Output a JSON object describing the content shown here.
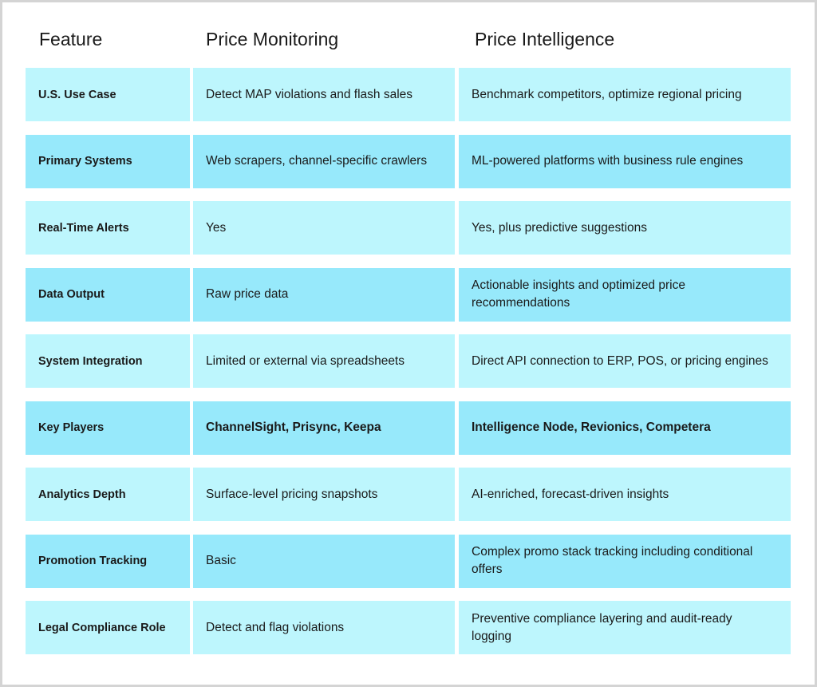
{
  "headers": [
    "Feature",
    "Price Monitoring",
    "Price Intelligence"
  ],
  "colors": {
    "row_light": "#bdf6fd",
    "row_dark": "#97e9fb",
    "frame": "#d4d4d4"
  },
  "rows": [
    {
      "feature": "U.S. Use Case",
      "monitoring": "Detect MAP violations and flash sales",
      "intelligence": "Benchmark competitors, optimize regional pricing"
    },
    {
      "feature": "Primary Systems",
      "monitoring": "Web scrapers, channel-specific crawlers",
      "intelligence": "ML-powered platforms with business rule engines"
    },
    {
      "feature": "Real-Time Alerts",
      "monitoring": "Yes",
      "intelligence": "Yes, plus predictive suggestions"
    },
    {
      "feature": "Data Output",
      "monitoring": "Raw price data",
      "intelligence": "Actionable insights and optimized price recommendations"
    },
    {
      "feature": "System Integration",
      "monitoring": "Limited or external via spreadsheets",
      "intelligence": "Direct API connection to ERP, POS, or pricing engines"
    },
    {
      "feature": "Key Players",
      "monitoring": "ChannelSight, Prisync, Keepa",
      "intelligence": "Intelligence Node, Revionics, Competera"
    },
    {
      "feature": "Analytics Depth",
      "monitoring": "Surface-level pricing snapshots",
      "intelligence": "AI-enriched, forecast-driven insights"
    },
    {
      "feature": "Promotion Tracking",
      "monitoring": "Basic",
      "intelligence": "Complex promo stack tracking including conditional offers"
    },
    {
      "feature": "Legal Compliance Role",
      "monitoring": "Detect and flag violations",
      "intelligence": "Preventive compliance layering and audit-ready logging"
    }
  ]
}
